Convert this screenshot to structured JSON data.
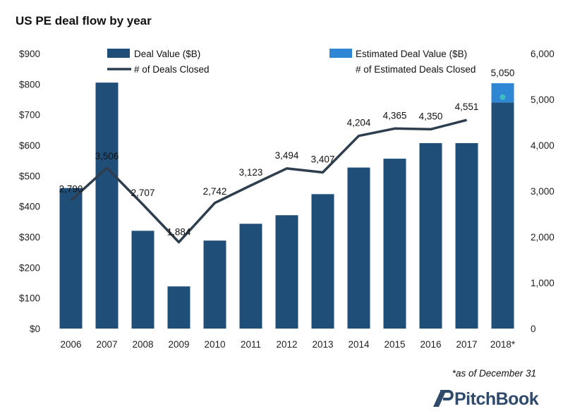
{
  "title": "US PE deal flow by year",
  "footnote": "*as of December 31",
  "logo_text": "PitchBook",
  "colors": {
    "deal_value": "#1f4e79",
    "estimated_deal_value": "#2e86d4",
    "deals_line": "#2f3e4e",
    "estimated_deals_marker": "#3bbfbf",
    "logo": "#2f4a6b"
  },
  "chart_data": {
    "type": "bar",
    "categories": [
      "2006",
      "2007",
      "2008",
      "2009",
      "2010",
      "2011",
      "2012",
      "2013",
      "2014",
      "2015",
      "2016",
      "2017",
      "2018*"
    ],
    "series": [
      {
        "name": "Deal Value ($B)",
        "type": "bar",
        "axis": "left",
        "values": [
          460,
          805,
          320,
          138,
          288,
          343,
          371,
          440,
          527,
          556,
          607,
          607,
          740
        ]
      },
      {
        "name": "Estimated Deal Value ($B)",
        "type": "bar-stack",
        "axis": "left",
        "values": [
          null,
          null,
          null,
          null,
          null,
          null,
          null,
          null,
          null,
          null,
          null,
          null,
          63
        ]
      },
      {
        "name": "# of Deals Closed",
        "type": "line",
        "axis": "right",
        "values": [
          2790,
          3506,
          2707,
          1884,
          2742,
          3123,
          3494,
          3407,
          4204,
          4365,
          4350,
          4551,
          null
        ]
      },
      {
        "name": "# of Estimated Deals Closed",
        "type": "marker",
        "axis": "right",
        "values": [
          null,
          null,
          null,
          null,
          null,
          null,
          null,
          null,
          null,
          null,
          null,
          null,
          5050
        ]
      }
    ],
    "data_labels": [
      "2,790",
      "3,506",
      "2,707",
      "1,884",
      "2,742",
      "3,123",
      "3,494",
      "3,407",
      "4,204",
      "4,365",
      "4,350",
      "4,551",
      "5,050"
    ],
    "y_left": {
      "ticks": [
        "$0",
        "$100",
        "$200",
        "$300",
        "$400",
        "$500",
        "$600",
        "$700",
        "$800",
        "$900"
      ],
      "range": [
        0,
        900
      ]
    },
    "y_right": {
      "ticks": [
        "0",
        "1,000",
        "2,000",
        "3,000",
        "4,000",
        "5,000",
        "6,000"
      ],
      "range": [
        0,
        6000
      ]
    },
    "grid": false,
    "legend_placement": "top"
  }
}
